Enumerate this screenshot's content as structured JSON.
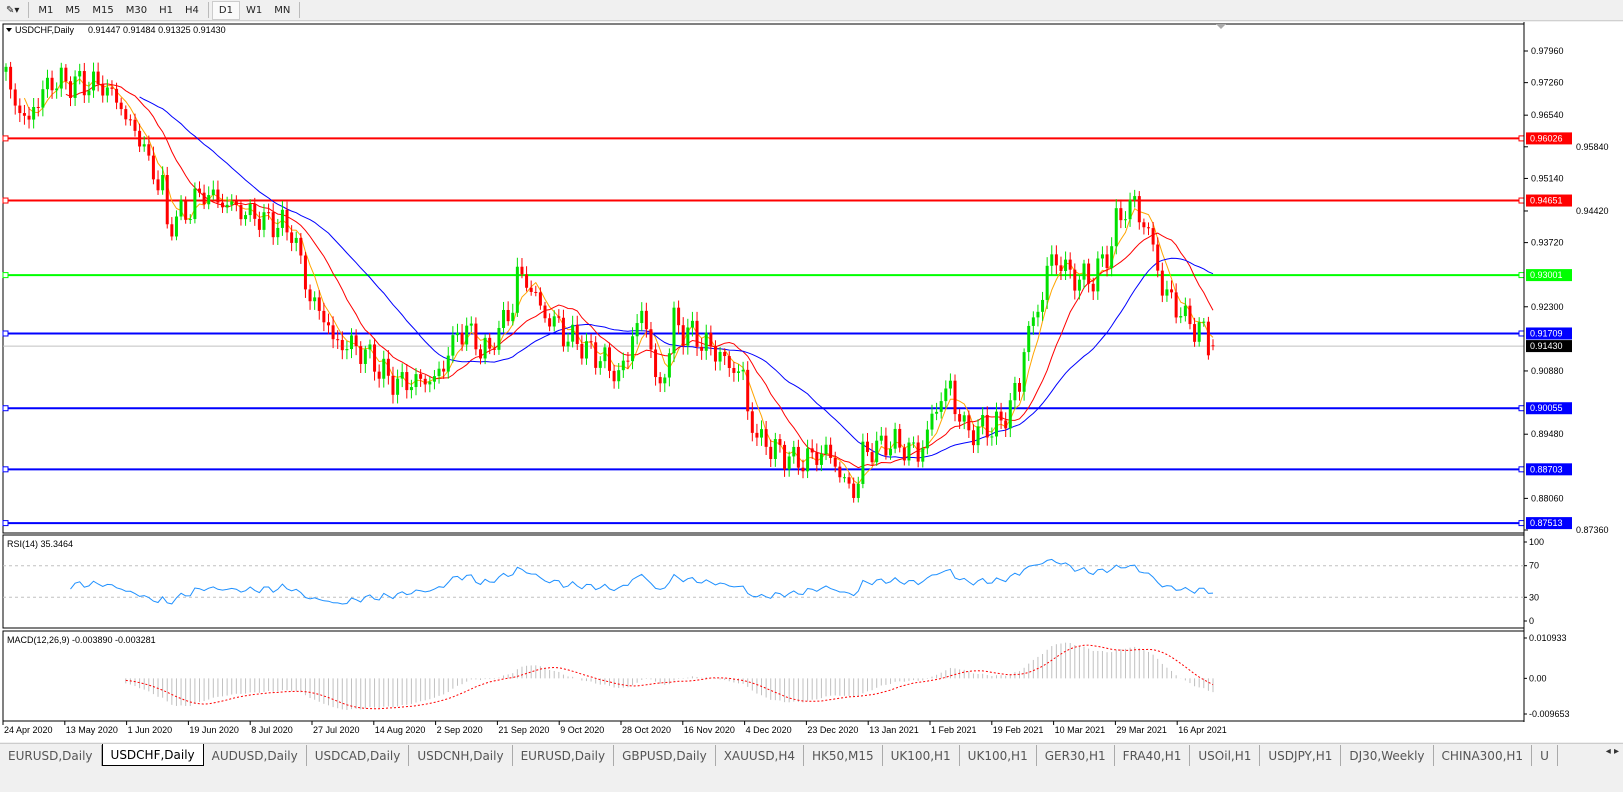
{
  "toolbar": {
    "timeframes": [
      "M1",
      "M5",
      "M15",
      "M30",
      "H1",
      "H4",
      "D1",
      "W1",
      "MN"
    ],
    "active": "D1"
  },
  "chart_header": {
    "symbol": "USDCHF,Daily",
    "ohlc": "0.91447 0.91484 0.91325 0.91430"
  },
  "rsi_label": "RSI(14) 35.3464",
  "macd_label": "MACD(12,26,9) -0.003890 -0.003281",
  "colors": {
    "bull": "#00e000",
    "bear": "#ff0000",
    "ma_fast": "#ffa500",
    "ma_mid": "#ff0000",
    "ma_slow": "#0000ff",
    "rsi": "#1e90ff",
    "macd_hist": "#c0c0c0",
    "macd_signal": "#ff0000"
  },
  "chart_data": {
    "type": "candlestick",
    "symbol": "USDCHF",
    "timeframe": "Daily",
    "last": {
      "open": 0.91447,
      "high": 0.91484,
      "low": 0.91325,
      "close": 0.9143
    },
    "price_ticks": [
      "0.97960",
      "0.97260",
      "0.96540",
      "0.95840",
      "0.95140",
      "0.94420",
      "0.93720",
      "0.92300",
      "0.90880",
      "0.89480",
      "0.88060",
      "0.87360"
    ],
    "ylim": [
      0.8736,
      0.985
    ],
    "date_ticks": [
      "24 Apr 2020",
      "13 May 2020",
      "1 Jun 2020",
      "19 Jun 2020",
      "8 Jul 2020",
      "27 Jul 2020",
      "14 Aug 2020",
      "2 Sep 2020",
      "21 Sep 2020",
      "9 Oct 2020",
      "28 Oct 2020",
      "16 Nov 2020",
      "4 Dec 2020",
      "23 Dec 2020",
      "13 Jan 2021",
      "1 Feb 2021",
      "19 Feb 2021",
      "10 Mar 2021",
      "29 Mar 2021",
      "16 Apr 2021"
    ],
    "approx_closes": [
      [
        "2020-04-24",
        0.975
      ],
      [
        "2020-05-01",
        0.9633
      ],
      [
        "2020-05-08",
        0.973
      ],
      [
        "2020-05-25",
        0.972
      ],
      [
        "2020-06-02",
        0.9633
      ],
      [
        "2020-06-11",
        0.9495
      ],
      [
        "2020-06-12",
        0.94
      ],
      [
        "2020-06-24",
        0.948
      ],
      [
        "2020-07-09",
        0.943
      ],
      [
        "2020-07-21",
        0.94
      ],
      [
        "2020-07-24",
        0.929
      ],
      [
        "2020-08-03",
        0.915
      ],
      [
        "2020-08-10",
        0.914
      ],
      [
        "2020-08-21",
        0.906
      ],
      [
        "2020-09-02",
        0.907
      ],
      [
        "2020-09-11",
        0.9188
      ],
      [
        "2020-09-18",
        0.9124
      ],
      [
        "2020-09-24",
        0.921
      ],
      [
        "2020-09-28",
        0.9305
      ],
      [
        "2020-10-06",
        0.921
      ],
      [
        "2020-10-12",
        0.9167
      ],
      [
        "2020-10-21",
        0.9124
      ],
      [
        "2020-10-28",
        0.908
      ],
      [
        "2020-11-04",
        0.921
      ],
      [
        "2020-11-10",
        0.9039
      ],
      [
        "2020-11-13",
        0.9198
      ],
      [
        "2020-11-24",
        0.9145
      ],
      [
        "2020-12-04",
        0.908
      ],
      [
        "2020-12-09",
        0.894
      ],
      [
        "2020-12-21",
        0.8886
      ],
      [
        "2020-12-30",
        0.8908
      ],
      [
        "2021-01-07",
        0.8822
      ],
      [
        "2021-01-11",
        0.8908
      ],
      [
        "2021-01-18",
        0.893
      ],
      [
        "2021-01-27",
        0.8908
      ],
      [
        "2021-02-05",
        0.9058
      ],
      [
        "2021-02-11",
        0.8951
      ],
      [
        "2021-02-22",
        0.8972
      ],
      [
        "2021-02-26",
        0.9058
      ],
      [
        "2021-03-04",
        0.9229
      ],
      [
        "2021-03-09",
        0.9336
      ],
      [
        "2021-03-16",
        0.9293
      ],
      [
        "2021-03-22",
        0.9293
      ],
      [
        "2021-03-29",
        0.942
      ],
      [
        "2021-04-02",
        0.9465
      ],
      [
        "2021-04-07",
        0.94
      ],
      [
        "2021-04-09",
        0.9314
      ],
      [
        "2021-04-15",
        0.9229
      ],
      [
        "2021-04-21",
        0.9186
      ],
      [
        "2021-04-27",
        0.9143
      ]
    ],
    "horizontal_lines": [
      {
        "price": "0.96026",
        "color": "#ff0000"
      },
      {
        "price": "0.94651",
        "color": "#ff0000"
      },
      {
        "price": "0.93001",
        "color": "#00ff00"
      },
      {
        "price": "0.91709",
        "color": "#0000ff"
      },
      {
        "price": "0.90055",
        "color": "#0000ff"
      },
      {
        "price": "0.88703",
        "color": "#0000ff"
      },
      {
        "price": "0.87513",
        "color": "#0000ff"
      }
    ],
    "current_price": "0.91430",
    "rsi": {
      "period": 14,
      "value": 35.3464,
      "levels": [
        "100",
        "70",
        "30",
        "0"
      ]
    },
    "macd": {
      "fast": 12,
      "slow": 26,
      "signal": 9,
      "main": -0.00389,
      "signal_value": -0.003281,
      "ticks": [
        "0.010933",
        "0.00",
        "-0.009653"
      ]
    }
  },
  "tabs": [
    "EURUSD,Daily",
    "USDCHF,Daily",
    "AUDUSD,Daily",
    "USDCAD,Daily",
    "USDCNH,Daily",
    "EURUSD,Daily",
    "GBPUSD,Daily",
    "XAUUSD,H4",
    "HK50,M15",
    "UK100,H1",
    "UK100,H1",
    "GER30,H1",
    "FRA40,H1",
    "USOil,H1",
    "USDJPY,H1",
    "DJ30,Weekly",
    "CHINA300,H1",
    "U"
  ],
  "active_tab": "USDCHF,Daily"
}
